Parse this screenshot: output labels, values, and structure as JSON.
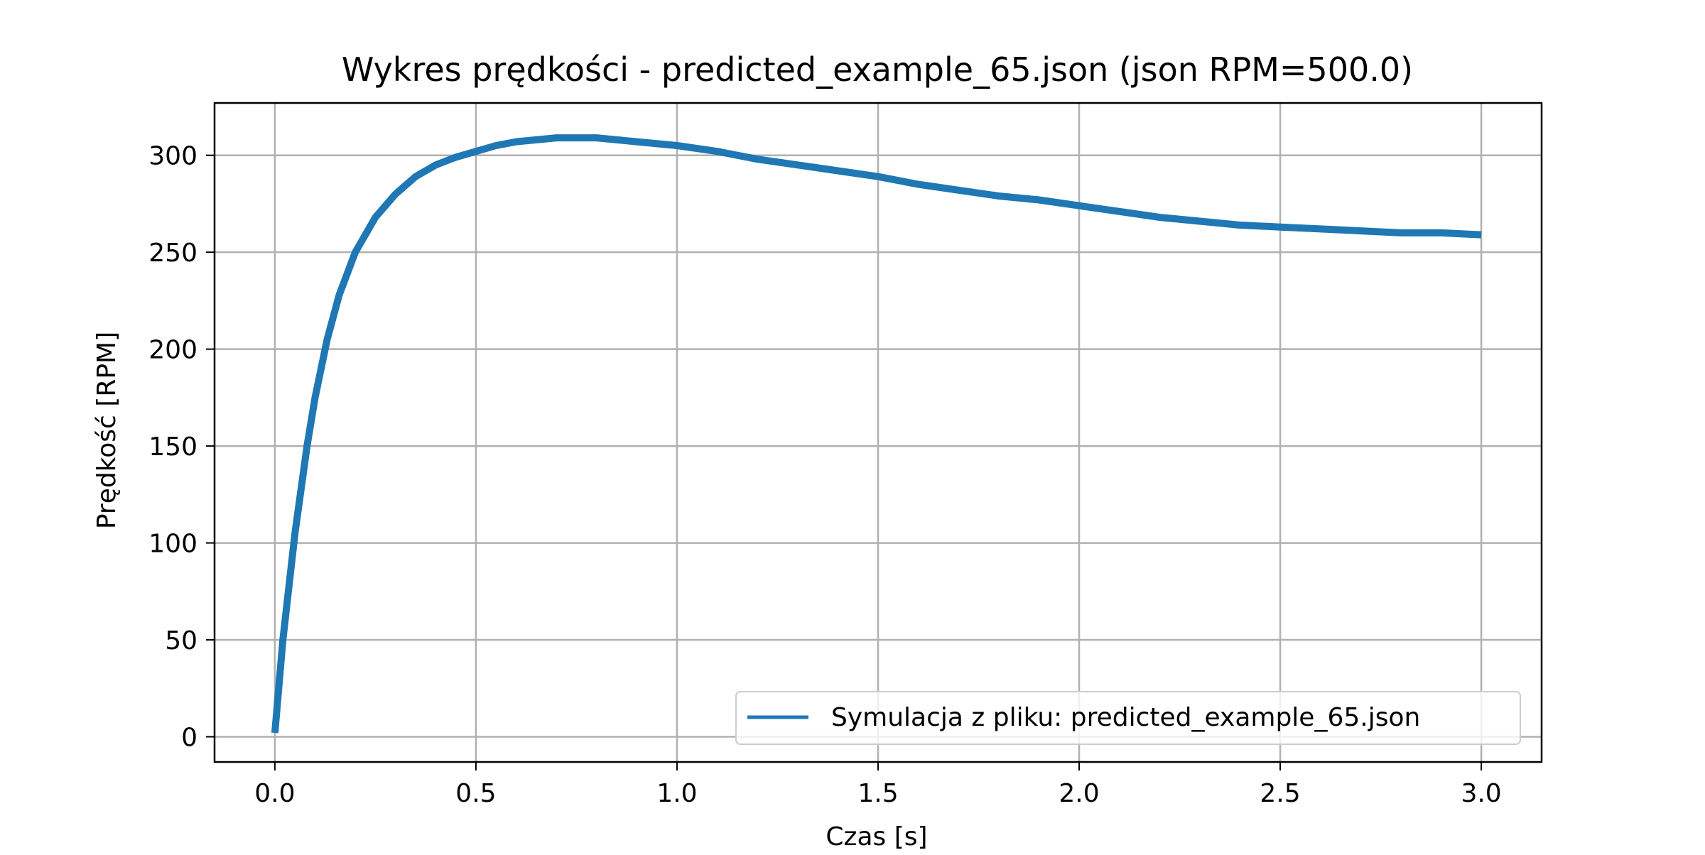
{
  "chart_data": {
    "type": "line",
    "title": "Wykres prędkości - predicted_example_65.json (json RPM=500.0)",
    "xlabel": "Czas [s]",
    "ylabel": "Prędkość [RPM]",
    "xlim": [
      -0.15,
      3.15
    ],
    "ylim": [
      -13,
      327
    ],
    "xticks": [
      0.0,
      0.5,
      1.0,
      1.5,
      2.0,
      2.5,
      3.0
    ],
    "xtick_labels": [
      "0.0",
      "0.5",
      "1.0",
      "1.5",
      "2.0",
      "2.5",
      "3.0"
    ],
    "yticks": [
      0,
      50,
      100,
      150,
      200,
      250,
      300
    ],
    "ytick_labels": [
      "0",
      "50",
      "100",
      "150",
      "200",
      "250",
      "300"
    ],
    "grid": true,
    "legend_position": "lower right",
    "series": [
      {
        "name": "Symulacja z pliku: predicted_example_65.json",
        "color": "#1f77b4",
        "x": [
          0.0,
          0.02,
          0.05,
          0.08,
          0.1,
          0.13,
          0.16,
          0.2,
          0.25,
          0.3,
          0.35,
          0.4,
          0.45,
          0.5,
          0.55,
          0.6,
          0.65,
          0.7,
          0.75,
          0.8,
          0.9,
          1.0,
          1.1,
          1.2,
          1.3,
          1.4,
          1.5,
          1.6,
          1.7,
          1.8,
          1.9,
          2.0,
          2.1,
          2.2,
          2.3,
          2.4,
          2.5,
          2.6,
          2.7,
          2.8,
          2.9,
          3.0
        ],
        "y": [
          2,
          50,
          105,
          150,
          175,
          205,
          228,
          250,
          268,
          280,
          289,
          295,
          299,
          302,
          305,
          307,
          308,
          309,
          309,
          309,
          307,
          305,
          302,
          298,
          295,
          292,
          289,
          285,
          282,
          279,
          277,
          274,
          271,
          268,
          266,
          264,
          263,
          262,
          261,
          260,
          260,
          259
        ]
      }
    ]
  }
}
